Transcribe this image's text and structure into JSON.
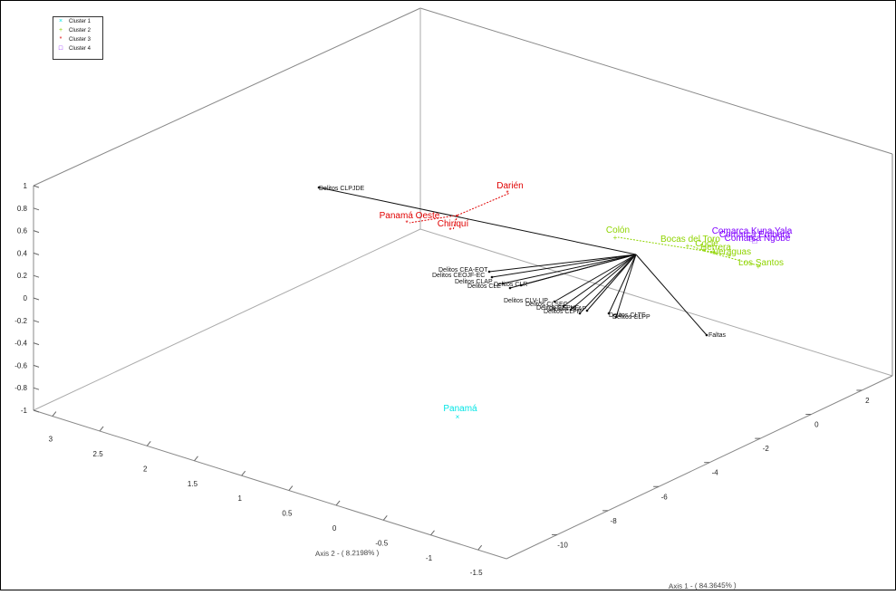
{
  "chart_data": {
    "type": "scatter",
    "title": "",
    "xlabel": "Axis 1 - ( 84.3645% )",
    "ylabel": "Axis 2 - ( 8.2198% )",
    "zlabel": "",
    "xlim": [
      -12,
      3
    ],
    "ylim": [
      -2,
      3.5
    ],
    "zlim": [
      -1,
      1
    ],
    "x_ticks": [
      "2",
      "0",
      "-2",
      "-4",
      "-6",
      "-8",
      "-10"
    ],
    "y_ticks": [
      "3",
      "2.5",
      "2",
      "1.5",
      "1",
      "0.5",
      "0",
      "-0.5",
      "-1",
      "-1.5"
    ],
    "z_ticks": [
      "1",
      "0.8",
      "0.6",
      "0.4",
      "0.2",
      "0",
      "-0.2",
      "-0.4",
      "-0.6",
      "-0.8",
      "-1"
    ],
    "legend": {
      "position": "top-left",
      "entries": [
        {
          "label": "Cluster 1",
          "marker": "×",
          "color": "#00e5e5"
        },
        {
          "label": "Cluster 2",
          "marker": "+",
          "color": "#8fd400"
        },
        {
          "label": "Cluster 3",
          "marker": "*",
          "color": "#e00000"
        },
        {
          "label": "Cluster 4",
          "marker": "□",
          "color": "#7f00ff"
        }
      ]
    },
    "biplot_origin": {
      "x": 0.0,
      "y": 0.0,
      "z": 0.0
    },
    "variables": [
      {
        "label": "Delitos CLPJDE"
      },
      {
        "label": "Delitos CEA-EOT"
      },
      {
        "label": "Delitos CEOJF-EC"
      },
      {
        "label": "Delitos CLAP"
      },
      {
        "label": "Delitos CLE"
      },
      {
        "label": "Delitos CLR"
      },
      {
        "label": "Delitos CLV-LIP"
      },
      {
        "label": "Delitos CLSEC"
      },
      {
        "label": "Delitos CEPHF"
      },
      {
        "label": "Delitos CLFP"
      },
      {
        "label": "Delitos SLAP"
      },
      {
        "label": "Delitos CLTE"
      },
      {
        "label": "Delitos CLPP"
      },
      {
        "label": "Faltas"
      }
    ],
    "series": [
      {
        "name": "Cluster 1",
        "color": "#00e5e5",
        "points": [
          {
            "label": "Panamá",
            "x": -6.0,
            "y": 0.3,
            "z": -0.6
          }
        ]
      },
      {
        "name": "Cluster 2",
        "color": "#8fd400",
        "points": [
          {
            "label": "Colón",
            "x": 0.5,
            "y": 1.5,
            "z": 0.3
          },
          {
            "label": "Bocas del Toro",
            "x": 1.5,
            "y": 0.8,
            "z": 0.3
          },
          {
            "label": "Coclé",
            "x": 1.3,
            "y": 0.5,
            "z": 0.25
          },
          {
            "label": "Herrera",
            "x": 1.6,
            "y": 0.4,
            "z": 0.22
          },
          {
            "label": "Veraguas",
            "x": 1.8,
            "y": 0.3,
            "z": 0.22
          },
          {
            "label": "Los Santos",
            "x": 2.2,
            "y": -0.2,
            "z": 0.2
          }
        ]
      },
      {
        "name": "Cluster 3",
        "color": "#e00000",
        "points": [
          {
            "label": "Darién",
            "x": -1.0,
            "y": 2.5,
            "z": 0.8
          },
          {
            "label": "Panamá Oeste",
            "x": -2.0,
            "y": 3.0,
            "z": 0.5
          },
          {
            "label": "Chiriquí",
            "x": -1.5,
            "y": 2.7,
            "z": 0.45
          }
        ]
      },
      {
        "name": "Cluster 4",
        "color": "#7f00ff",
        "points": [
          {
            "label": "Comarca Kuna Yala",
            "x": 2.6,
            "y": 0.5,
            "z": 0.35
          },
          {
            "label": "Comarca Emberá",
            "x": 2.7,
            "y": 0.4,
            "z": 0.34
          },
          {
            "label": "Comarca Ngöbe",
            "x": 2.8,
            "y": 0.3,
            "z": 0.33
          }
        ]
      }
    ]
  }
}
